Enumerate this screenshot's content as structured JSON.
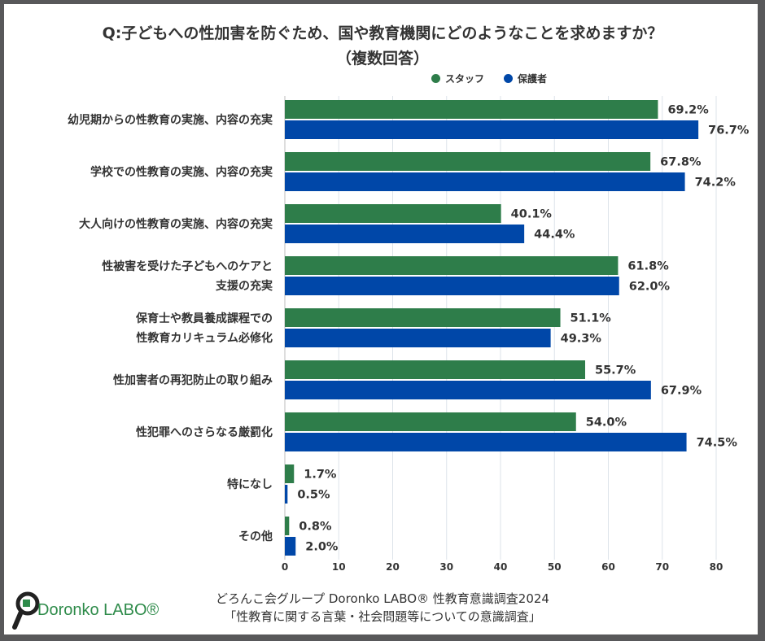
{
  "title_line1": "Q:子どもへの性加害を防ぐため、国や教育機関にどのようなことを求めますか？",
  "title_line2": "（複数回答）",
  "colors": {
    "staff": "#2e7d4a",
    "parents": "#0047a8",
    "frame": "#58585a"
  },
  "chart_data": {
    "type": "bar",
    "orientation": "horizontal",
    "categories": [
      "幼児期からの性教育の実施、内容の充実",
      "学校での性教育の実施、内容の充実",
      "大人向けの性教育の実施、内容の充実",
      "性被害を受けた子どもへのケアと\n支援の充実",
      "保育士や教員養成課程での\n性教育カリキュラム必修化",
      "性加害者の再犯防止の取り組み",
      "性犯罪へのさらなる厳罰化",
      "特になし",
      "その他"
    ],
    "series": [
      {
        "name": "スタッフ",
        "values": [
          69.2,
          67.8,
          40.1,
          61.8,
          51.1,
          55.7,
          54.0,
          1.7,
          0.8
        ]
      },
      {
        "name": "保護者",
        "values": [
          76.7,
          74.2,
          44.4,
          62.0,
          49.3,
          67.9,
          74.5,
          0.5,
          2.0
        ]
      }
    ],
    "value_suffix": "%",
    "xlim": [
      0,
      80
    ],
    "xticks": [
      0,
      10,
      20,
      30,
      40,
      50,
      60,
      70,
      80
    ],
    "grid": true,
    "legend_placement": "top-right"
  },
  "footer": {
    "line1": "どろんこ会グループ Doronko LABO® 性教育意識調査2024",
    "line2": "「性教育に関する言葉・社会問題等についての意識調査」"
  },
  "logo": {
    "text": "Doronko LABO®"
  }
}
